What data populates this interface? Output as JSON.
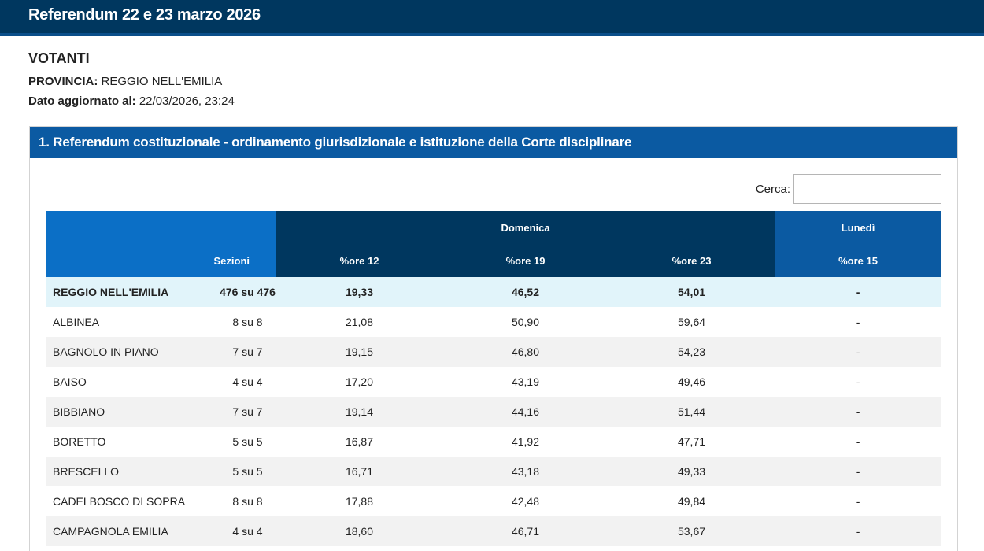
{
  "header": {
    "title": "Referendum 22 e 23 marzo 2026"
  },
  "meta": {
    "section_title": "VOTANTI",
    "provincia_label": "PROVINCIA:",
    "provincia_value": "REGGIO NELL'EMILIA",
    "updated_label": "Dato aggiornato al:",
    "updated_value": "22/03/2026, 23:24"
  },
  "panel": {
    "title": "1. Referendum costituzionale - ordinamento giurisdizionale e istituzione della Corte disciplinare"
  },
  "search": {
    "label": "Cerca:",
    "value": ""
  },
  "table": {
    "group_headers": {
      "domenica": "Domenica",
      "lunedi": "Lunedì"
    },
    "columns": {
      "sezioni": "Sezioni",
      "ore12": "%ore 12",
      "ore19": "%ore 19",
      "ore23": "%ore 23",
      "ore15": "%ore 15"
    },
    "rows": [
      [
        "REGGIO NELL'EMILIA",
        "476 su 476",
        "19,33",
        "46,52",
        "54,01",
        "-"
      ],
      [
        "ALBINEA",
        "8 su 8",
        "21,08",
        "50,90",
        "59,64",
        "-"
      ],
      [
        "BAGNOLO IN PIANO",
        "7 su 7",
        "19,15",
        "46,80",
        "54,23",
        "-"
      ],
      [
        "BAISO",
        "4 su 4",
        "17,20",
        "43,19",
        "49,46",
        "-"
      ],
      [
        "BIBBIANO",
        "7 su 7",
        "19,14",
        "44,16",
        "51,44",
        "-"
      ],
      [
        "BORETTO",
        "5 su 5",
        "16,87",
        "41,92",
        "47,71",
        "-"
      ],
      [
        "BRESCELLO",
        "5 su 5",
        "16,71",
        "43,18",
        "49,33",
        "-"
      ],
      [
        "CADELBOSCO DI SOPRA",
        "8 su 8",
        "17,88",
        "42,48",
        "49,84",
        "-"
      ],
      [
        "CAMPAGNOLA EMILIA",
        "4 su 4",
        "18,60",
        "46,71",
        "53,67",
        "-"
      ]
    ]
  }
}
